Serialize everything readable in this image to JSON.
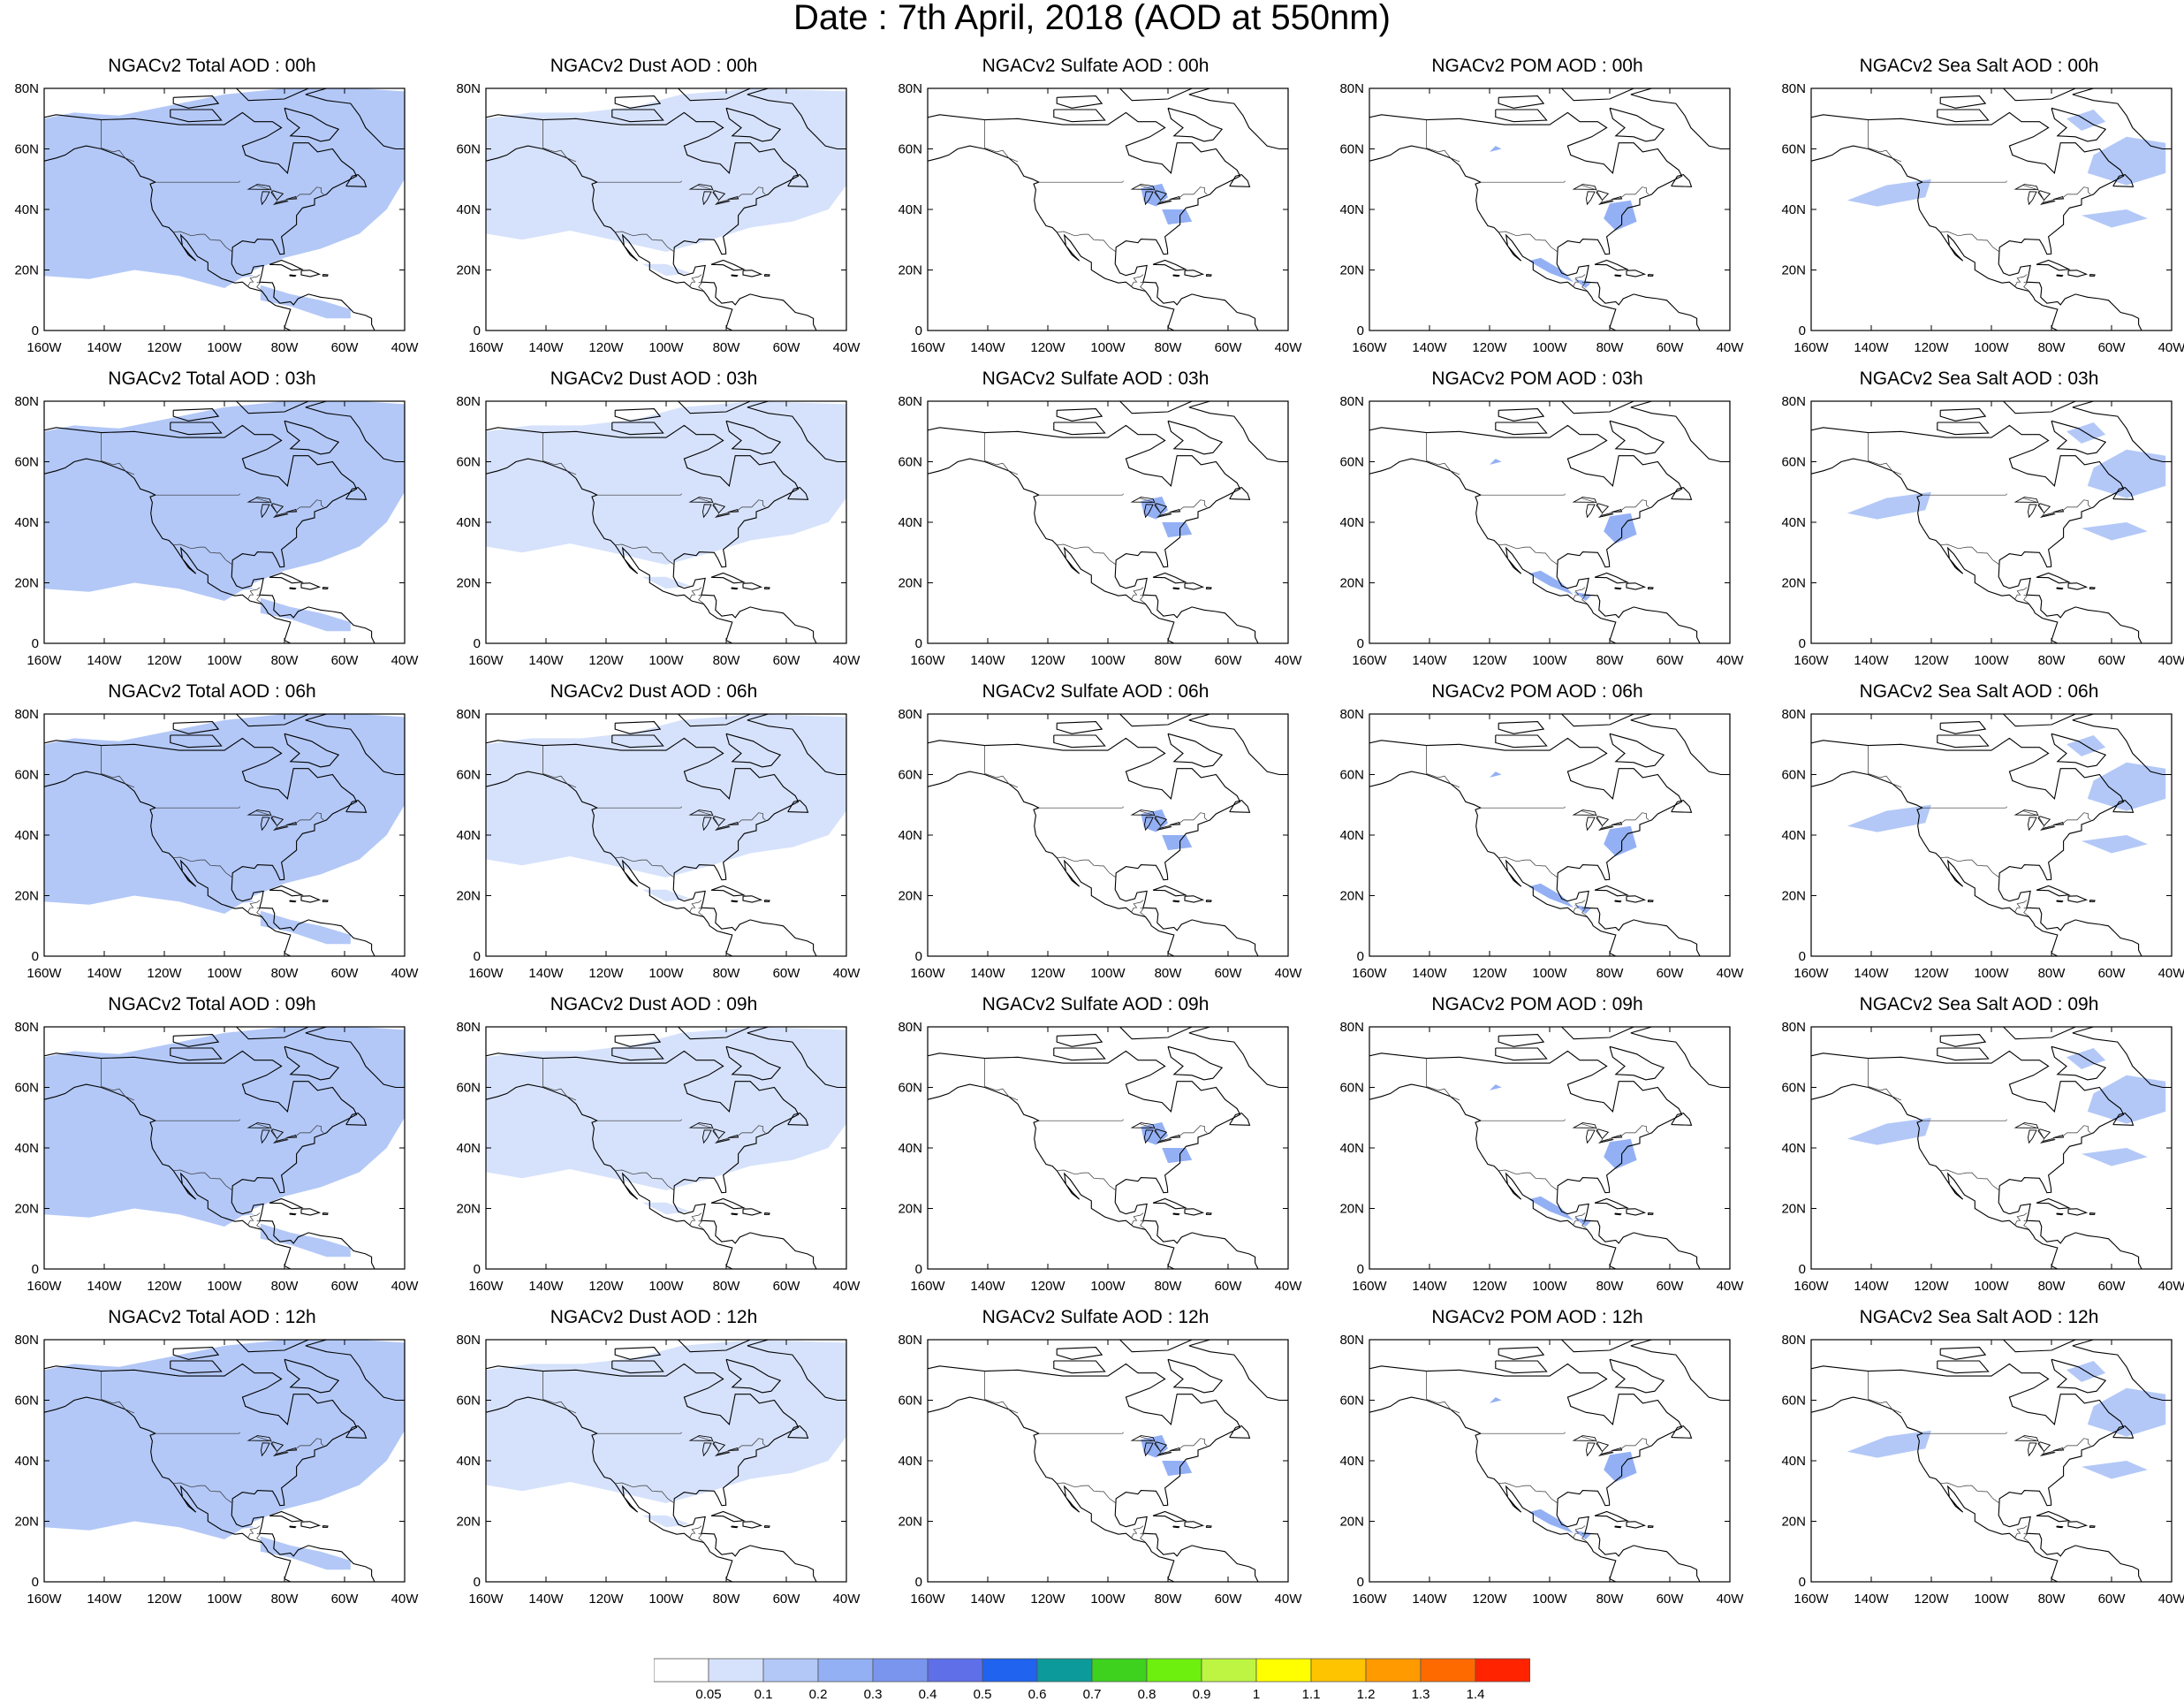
{
  "title": "Date : 7th April, 2018 (AOD at 550nm)",
  "map": {
    "lat_ticks": [
      "80N",
      "60N",
      "40N",
      "20N",
      "0"
    ],
    "lon_ticks": [
      "160W",
      "140W",
      "120W",
      "100W",
      "80W",
      "60W",
      "40W"
    ],
    "extent": {
      "lon": [
        -160,
        -40
      ],
      "lat": [
        0,
        80
      ]
    }
  },
  "columns": [
    {
      "species": "total",
      "coverage": "heavy"
    },
    {
      "species": "dust",
      "coverage": "broad"
    },
    {
      "species": "sulfate",
      "coverage": "sparse"
    },
    {
      "species": "pom",
      "coverage": "sparse"
    },
    {
      "species": "seasalt",
      "coverage": "patchy"
    }
  ],
  "rows": [
    {
      "time": "00h",
      "titles": [
        "NGACv2 Total AOD : 00h",
        "NGACv2 Dust AOD : 00h",
        "NGACv2 Sulfate AOD : 00h",
        "NGACv2 POM AOD : 00h",
        "NGACv2 Sea Salt AOD : 00h"
      ]
    },
    {
      "time": "03h",
      "titles": [
        "NGACv2 Total AOD : 03h",
        "NGACv2 Dust AOD : 03h",
        "NGACv2 Sulfate AOD : 03h",
        "NGACv2 POM AOD : 03h",
        "NGACv2 Sea Salt AOD : 03h"
      ]
    },
    {
      "time": "06h",
      "titles": [
        "NGACv2 Total AOD : 06h",
        "NGACv2 Dust AOD : 06h",
        "NGACv2 Sulfate AOD : 06h",
        "NGACv2 POM AOD : 06h",
        "NGACv2 Sea Salt AOD : 06h"
      ]
    },
    {
      "time": "09h",
      "titles": [
        "NGACv2 Total AOD : 09h",
        "NGACv2 Dust AOD : 09h",
        "NGACv2 Sulfate AOD : 09h",
        "NGACv2 POM AOD : 09h",
        "NGACv2 Sea Salt  AOD : 09h"
      ]
    },
    {
      "time": "12h",
      "titles": [
        "NGACv2 Total AOD  : 12h",
        "NGACv2 Dust AOD : 12h",
        "NGACv2 Sulfate AOD : 12h",
        "NGACv2 POM  AOD : 12h",
        "NGACv2 Sea Salt  AOD : 12h"
      ]
    }
  ],
  "colorbar": {
    "labels": [
      "0.05",
      "0.1",
      "0.2",
      "0.3",
      "0.4",
      "0.5",
      "0.6",
      "0.7",
      "0.8",
      "0.9",
      "1",
      "1.1",
      "1.2",
      "1.3",
      "1.4"
    ],
    "colors": [
      "#ffffff",
      "#d6e2fb",
      "#b3c8f7",
      "#94b0f4",
      "#7a95ee",
      "#5f6fe8",
      "#1f63ee",
      "#0d9a9a",
      "#3ed11e",
      "#6ef00e",
      "#bdf542",
      "#ffff00",
      "#ffc400",
      "#ff9a00",
      "#ff6a00",
      "#ff2300"
    ]
  }
}
